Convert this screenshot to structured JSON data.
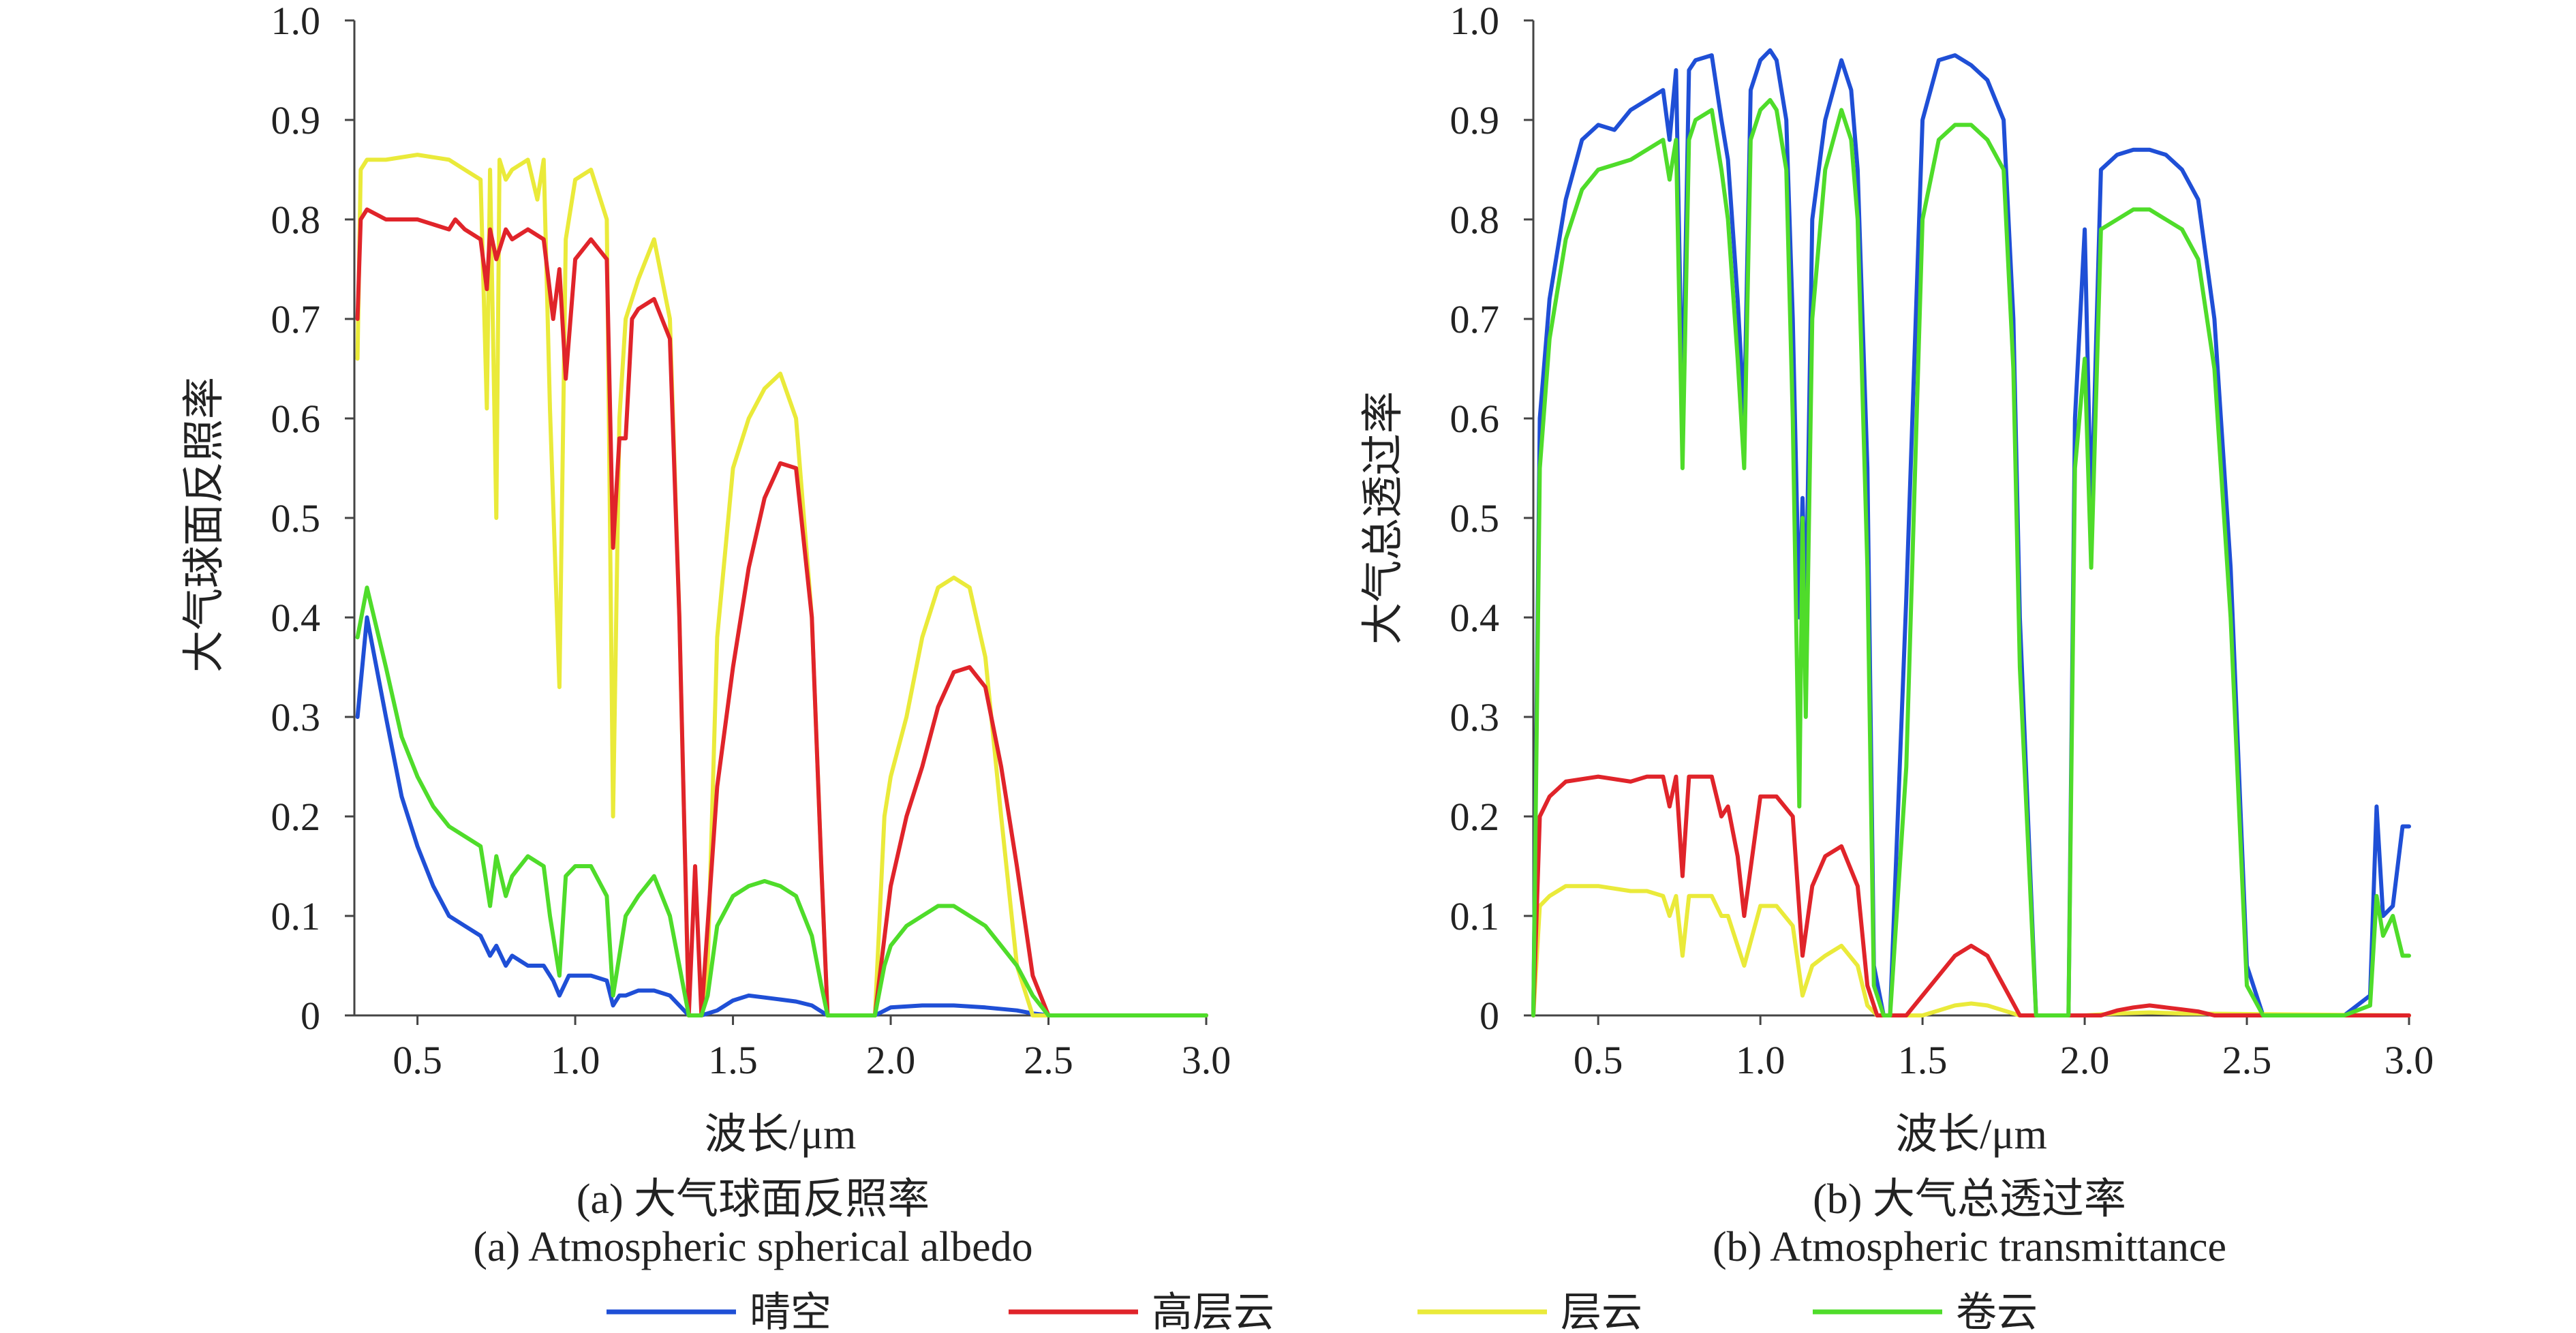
{
  "legend": [
    {
      "label": "晴空",
      "color": "#1f4fd6"
    },
    {
      "label": "高层云",
      "color": "#e0242a"
    },
    {
      "label": "层云",
      "color": "#eaea3a"
    },
    {
      "label": "卷云",
      "color": "#4fdc2a"
    }
  ],
  "chart_data": [
    {
      "type": "line",
      "title": "",
      "caption_cn": "(a) 大气球面反照率",
      "caption_en": "(a) Atmospheric spherical albedo",
      "xlabel": "波长/μm",
      "ylabel": "大气球面反照率",
      "xlim": [
        0.3,
        3.0
      ],
      "ylim": [
        0,
        1.0
      ],
      "xticks": [
        "0.5",
        "1.0",
        "1.5",
        "2.0",
        "2.5",
        "3.0"
      ],
      "yticks": [
        "0",
        "0.1",
        "0.2",
        "0.3",
        "0.4",
        "0.5",
        "0.6",
        "0.7",
        "0.8",
        "0.9",
        "1.0"
      ],
      "grid": false,
      "series": [
        {
          "name": "晴空",
          "color": "#1f4fd6",
          "x": [
            0.31,
            0.34,
            0.4,
            0.45,
            0.5,
            0.55,
            0.6,
            0.65,
            0.7,
            0.73,
            0.75,
            0.78,
            0.8,
            0.85,
            0.9,
            0.93,
            0.95,
            0.98,
            1.0,
            1.05,
            1.1,
            1.12,
            1.14,
            1.16,
            1.2,
            1.25,
            1.3,
            1.33,
            1.36,
            1.4,
            1.45,
            1.5,
            1.55,
            1.6,
            1.65,
            1.7,
            1.75,
            1.8,
            1.85,
            1.9,
            1.95,
            2.0,
            2.1,
            2.2,
            2.3,
            2.4,
            2.45,
            2.5,
            2.6,
            2.8,
            3.0
          ],
          "y": [
            0.3,
            0.4,
            0.3,
            0.22,
            0.17,
            0.13,
            0.1,
            0.09,
            0.08,
            0.06,
            0.07,
            0.05,
            0.06,
            0.05,
            0.05,
            0.035,
            0.02,
            0.04,
            0.04,
            0.04,
            0.035,
            0.01,
            0.02,
            0.02,
            0.025,
            0.025,
            0.02,
            0.01,
            0.0,
            0.0,
            0.005,
            0.015,
            0.02,
            0.018,
            0.016,
            0.014,
            0.01,
            0.0,
            0.0,
            0.0,
            0.0,
            0.008,
            0.01,
            0.01,
            0.008,
            0.005,
            0.002,
            0.0,
            0.0,
            0.0,
            0.0
          ]
        },
        {
          "name": "高层云",
          "color": "#e0242a",
          "x": [
            0.31,
            0.32,
            0.34,
            0.4,
            0.5,
            0.6,
            0.62,
            0.65,
            0.7,
            0.72,
            0.73,
            0.75,
            0.78,
            0.8,
            0.85,
            0.9,
            0.93,
            0.95,
            0.97,
            1.0,
            1.05,
            1.1,
            1.12,
            1.14,
            1.16,
            1.18,
            1.2,
            1.25,
            1.3,
            1.33,
            1.36,
            1.38,
            1.4,
            1.45,
            1.5,
            1.55,
            1.6,
            1.65,
            1.7,
            1.75,
            1.78,
            1.8,
            1.85,
            1.9,
            1.95,
            2.0,
            2.05,
            2.1,
            2.15,
            2.2,
            2.25,
            2.3,
            2.35,
            2.4,
            2.45,
            2.5,
            3.0
          ],
          "y": [
            0.7,
            0.8,
            0.81,
            0.8,
            0.8,
            0.79,
            0.8,
            0.79,
            0.78,
            0.73,
            0.79,
            0.76,
            0.79,
            0.78,
            0.79,
            0.78,
            0.7,
            0.75,
            0.64,
            0.76,
            0.78,
            0.76,
            0.47,
            0.58,
            0.58,
            0.7,
            0.71,
            0.72,
            0.68,
            0.4,
            0.0,
            0.15,
            0.0,
            0.23,
            0.35,
            0.45,
            0.52,
            0.555,
            0.55,
            0.4,
            0.15,
            0.0,
            0.0,
            0.0,
            0.0,
            0.13,
            0.2,
            0.25,
            0.31,
            0.345,
            0.35,
            0.33,
            0.25,
            0.15,
            0.04,
            0.0,
            0.0
          ]
        },
        {
          "name": "层云",
          "color": "#eaea3a",
          "x": [
            0.31,
            0.32,
            0.34,
            0.4,
            0.5,
            0.6,
            0.65,
            0.7,
            0.72,
            0.73,
            0.75,
            0.76,
            0.78,
            0.8,
            0.85,
            0.88,
            0.9,
            0.92,
            0.95,
            0.97,
            1.0,
            1.05,
            1.1,
            1.12,
            1.14,
            1.16,
            1.2,
            1.25,
            1.3,
            1.33,
            1.36,
            1.4,
            1.42,
            1.45,
            1.5,
            1.55,
            1.6,
            1.65,
            1.7,
            1.75,
            1.78,
            1.8,
            1.85,
            1.9,
            1.95,
            1.98,
            2.0,
            2.05,
            2.1,
            2.15,
            2.2,
            2.25,
            2.3,
            2.35,
            2.4,
            2.45,
            3.0
          ],
          "y": [
            0.66,
            0.85,
            0.86,
            0.86,
            0.865,
            0.86,
            0.85,
            0.84,
            0.61,
            0.85,
            0.5,
            0.86,
            0.84,
            0.85,
            0.86,
            0.82,
            0.86,
            0.61,
            0.33,
            0.78,
            0.84,
            0.85,
            0.8,
            0.2,
            0.6,
            0.7,
            0.74,
            0.78,
            0.7,
            0.4,
            0.0,
            0.0,
            0.05,
            0.38,
            0.55,
            0.6,
            0.63,
            0.645,
            0.6,
            0.4,
            0.15,
            0.0,
            0.0,
            0.0,
            0.0,
            0.2,
            0.24,
            0.3,
            0.38,
            0.43,
            0.44,
            0.43,
            0.36,
            0.2,
            0.05,
            0.0,
            0.0
          ]
        },
        {
          "name": "卷云",
          "color": "#4fdc2a",
          "x": [
            0.31,
            0.34,
            0.4,
            0.45,
            0.5,
            0.55,
            0.6,
            0.65,
            0.7,
            0.73,
            0.75,
            0.78,
            0.8,
            0.85,
            0.9,
            0.92,
            0.95,
            0.97,
            1.0,
            1.05,
            1.1,
            1.12,
            1.14,
            1.16,
            1.2,
            1.25,
            1.3,
            1.33,
            1.36,
            1.4,
            1.42,
            1.45,
            1.5,
            1.55,
            1.6,
            1.65,
            1.7,
            1.75,
            1.78,
            1.8,
            1.85,
            1.9,
            1.95,
            1.98,
            2.0,
            2.05,
            2.1,
            2.15,
            2.2,
            2.25,
            2.3,
            2.35,
            2.4,
            2.45,
            2.5,
            3.0
          ],
          "y": [
            0.38,
            0.43,
            0.35,
            0.28,
            0.24,
            0.21,
            0.19,
            0.18,
            0.17,
            0.11,
            0.16,
            0.12,
            0.14,
            0.16,
            0.15,
            0.1,
            0.04,
            0.14,
            0.15,
            0.15,
            0.12,
            0.02,
            0.06,
            0.1,
            0.12,
            0.14,
            0.1,
            0.05,
            0.0,
            0.0,
            0.02,
            0.09,
            0.12,
            0.13,
            0.135,
            0.13,
            0.12,
            0.08,
            0.03,
            0.0,
            0.0,
            0.0,
            0.0,
            0.05,
            0.07,
            0.09,
            0.1,
            0.11,
            0.11,
            0.1,
            0.09,
            0.07,
            0.05,
            0.02,
            0.0,
            0.0
          ]
        }
      ]
    },
    {
      "type": "line",
      "title": "",
      "caption_cn": "(b) 大气总透过率",
      "caption_en": "(b) Atmospheric transmittance",
      "xlabel": "波长/μm",
      "ylabel": "大气总透过率",
      "xlim": [
        0.3,
        3.0
      ],
      "ylim": [
        0,
        1.0
      ],
      "xticks": [
        "0.5",
        "1.0",
        "1.5",
        "2.0",
        "2.5",
        "3.0"
      ],
      "yticks": [
        "0",
        "0.1",
        "0.2",
        "0.3",
        "0.4",
        "0.5",
        "0.6",
        "0.7",
        "0.8",
        "0.9",
        "1.0"
      ],
      "grid": false,
      "series": [
        {
          "name": "晴空",
          "color": "#1f4fd6",
          "x": [
            0.3,
            0.32,
            0.35,
            0.4,
            0.45,
            0.5,
            0.55,
            0.6,
            0.65,
            0.7,
            0.72,
            0.74,
            0.76,
            0.78,
            0.8,
            0.85,
            0.88,
            0.9,
            0.93,
            0.95,
            0.97,
            1.0,
            1.03,
            1.05,
            1.08,
            1.1,
            1.12,
            1.13,
            1.14,
            1.16,
            1.2,
            1.25,
            1.28,
            1.3,
            1.33,
            1.35,
            1.38,
            1.4,
            1.45,
            1.5,
            1.55,
            1.6,
            1.65,
            1.7,
            1.75,
            1.78,
            1.8,
            1.85,
            1.9,
            1.95,
            1.97,
            2.0,
            2.02,
            2.05,
            2.1,
            2.15,
            2.2,
            2.25,
            2.3,
            2.35,
            2.4,
            2.45,
            2.5,
            2.55,
            2.6,
            2.8,
            2.88,
            2.9,
            2.92,
            2.95,
            2.98,
            3.0
          ],
          "y": [
            0.0,
            0.6,
            0.72,
            0.82,
            0.88,
            0.895,
            0.89,
            0.91,
            0.92,
            0.93,
            0.88,
            0.95,
            0.6,
            0.95,
            0.96,
            0.965,
            0.9,
            0.86,
            0.72,
            0.6,
            0.93,
            0.96,
            0.97,
            0.96,
            0.9,
            0.7,
            0.4,
            0.52,
            0.4,
            0.8,
            0.9,
            0.96,
            0.93,
            0.85,
            0.55,
            0.05,
            0.0,
            0.0,
            0.42,
            0.9,
            0.96,
            0.965,
            0.955,
            0.94,
            0.9,
            0.7,
            0.4,
            0.0,
            0.0,
            0.0,
            0.6,
            0.79,
            0.5,
            0.85,
            0.865,
            0.87,
            0.87,
            0.865,
            0.85,
            0.82,
            0.7,
            0.45,
            0.05,
            0.0,
            0.0,
            0.0,
            0.02,
            0.21,
            0.1,
            0.11,
            0.19,
            0.19
          ]
        },
        {
          "name": "高层云",
          "color": "#e0242a",
          "x": [
            0.3,
            0.32,
            0.35,
            0.4,
            0.5,
            0.6,
            0.65,
            0.7,
            0.72,
            0.74,
            0.76,
            0.78,
            0.8,
            0.85,
            0.88,
            0.9,
            0.93,
            0.95,
            1.0,
            1.05,
            1.1,
            1.13,
            1.16,
            1.2,
            1.25,
            1.3,
            1.33,
            1.36,
            1.4,
            1.45,
            1.5,
            1.55,
            1.6,
            1.65,
            1.7,
            1.75,
            1.8,
            1.85,
            2.0,
            2.05,
            2.1,
            2.15,
            2.2,
            2.25,
            2.3,
            2.35,
            2.4,
            3.0
          ],
          "y": [
            0.0,
            0.2,
            0.22,
            0.235,
            0.24,
            0.235,
            0.24,
            0.24,
            0.21,
            0.24,
            0.14,
            0.24,
            0.24,
            0.24,
            0.2,
            0.21,
            0.16,
            0.1,
            0.22,
            0.22,
            0.2,
            0.06,
            0.13,
            0.16,
            0.17,
            0.13,
            0.03,
            0.0,
            0.0,
            0.0,
            0.02,
            0.04,
            0.06,
            0.07,
            0.06,
            0.03,
            0.0,
            0.0,
            0.0,
            0.0,
            0.005,
            0.008,
            0.01,
            0.008,
            0.006,
            0.004,
            0.0,
            0.0
          ]
        },
        {
          "name": "层云",
          "color": "#eaea3a",
          "x": [
            0.3,
            0.32,
            0.35,
            0.4,
            0.5,
            0.6,
            0.65,
            0.7,
            0.72,
            0.74,
            0.76,
            0.78,
            0.8,
            0.85,
            0.88,
            0.9,
            0.93,
            0.95,
            1.0,
            1.05,
            1.1,
            1.13,
            1.16,
            1.2,
            1.25,
            1.3,
            1.33,
            1.36,
            1.4,
            1.5,
            1.55,
            1.6,
            1.65,
            1.7,
            1.75,
            1.8,
            1.85,
            2.0,
            2.1,
            2.2,
            2.3,
            3.0
          ],
          "y": [
            0.0,
            0.11,
            0.12,
            0.13,
            0.13,
            0.125,
            0.125,
            0.12,
            0.1,
            0.12,
            0.06,
            0.12,
            0.12,
            0.12,
            0.1,
            0.1,
            0.07,
            0.05,
            0.11,
            0.11,
            0.09,
            0.02,
            0.05,
            0.06,
            0.07,
            0.05,
            0.01,
            0.0,
            0.0,
            0.0,
            0.005,
            0.01,
            0.012,
            0.01,
            0.005,
            0.0,
            0.0,
            0.0,
            0.002,
            0.003,
            0.002,
            0.0
          ]
        },
        {
          "name": "卷云",
          "color": "#4fdc2a",
          "x": [
            0.3,
            0.32,
            0.35,
            0.4,
            0.45,
            0.5,
            0.55,
            0.6,
            0.65,
            0.7,
            0.72,
            0.74,
            0.76,
            0.78,
            0.8,
            0.85,
            0.88,
            0.9,
            0.93,
            0.95,
            0.97,
            1.0,
            1.03,
            1.05,
            1.08,
            1.1,
            1.12,
            1.13,
            1.14,
            1.16,
            1.2,
            1.25,
            1.28,
            1.3,
            1.33,
            1.35,
            1.38,
            1.4,
            1.45,
            1.5,
            1.55,
            1.6,
            1.65,
            1.7,
            1.75,
            1.78,
            1.8,
            1.85,
            1.9,
            1.95,
            1.97,
            2.0,
            2.02,
            2.05,
            2.1,
            2.15,
            2.2,
            2.25,
            2.3,
            2.35,
            2.4,
            2.45,
            2.5,
            2.55,
            2.6,
            2.8,
            2.88,
            2.9,
            2.92,
            2.95,
            2.98,
            3.0
          ],
          "y": [
            0.0,
            0.55,
            0.68,
            0.78,
            0.83,
            0.85,
            0.855,
            0.86,
            0.87,
            0.88,
            0.84,
            0.88,
            0.55,
            0.88,
            0.9,
            0.91,
            0.85,
            0.8,
            0.66,
            0.55,
            0.88,
            0.91,
            0.92,
            0.91,
            0.85,
            0.6,
            0.21,
            0.5,
            0.3,
            0.7,
            0.85,
            0.91,
            0.88,
            0.8,
            0.45,
            0.03,
            0.0,
            0.0,
            0.25,
            0.8,
            0.88,
            0.895,
            0.895,
            0.88,
            0.85,
            0.65,
            0.35,
            0.0,
            0.0,
            0.0,
            0.55,
            0.66,
            0.45,
            0.79,
            0.8,
            0.81,
            0.81,
            0.8,
            0.79,
            0.76,
            0.65,
            0.4,
            0.03,
            0.0,
            0.0,
            0.0,
            0.01,
            0.12,
            0.08,
            0.1,
            0.06,
            0.06
          ]
        }
      ]
    }
  ]
}
